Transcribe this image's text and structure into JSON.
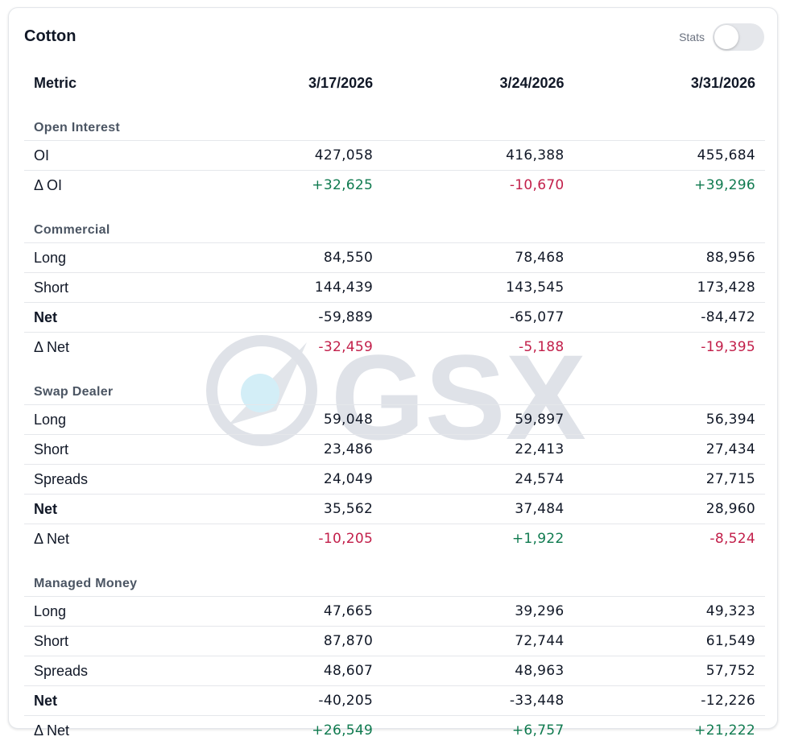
{
  "card": {
    "title": "Cotton",
    "stats_label": "Stats",
    "stats_enabled": false
  },
  "watermark": {
    "text": "GSX"
  },
  "colors": {
    "positive": "#0f7a4f",
    "negative": "#c21f4a",
    "section": "#4b5563"
  },
  "table": {
    "headers": [
      "Metric",
      "3/17/2026",
      "3/24/2026",
      "3/31/2026"
    ],
    "sections": [
      {
        "title": "Open Interest",
        "rows": [
          {
            "label": "OI",
            "values": [
              "427,058",
              "416,388",
              "455,684"
            ],
            "bold": false,
            "delta": false
          },
          {
            "label": "Δ OI",
            "values": [
              "+32,625",
              "-10,670",
              "+39,296"
            ],
            "bold": false,
            "delta": true
          }
        ]
      },
      {
        "title": "Commercial",
        "rows": [
          {
            "label": "Long",
            "values": [
              "84,550",
              "78,468",
              "88,956"
            ],
            "bold": false,
            "delta": false
          },
          {
            "label": "Short",
            "values": [
              "144,439",
              "143,545",
              "173,428"
            ],
            "bold": false,
            "delta": false
          },
          {
            "label": "Net",
            "values": [
              "-59,889",
              "-65,077",
              "-84,472"
            ],
            "bold": true,
            "delta": false
          },
          {
            "label": "Δ Net",
            "values": [
              "-32,459",
              "-5,188",
              "-19,395"
            ],
            "bold": false,
            "delta": true
          }
        ]
      },
      {
        "title": "Swap Dealer",
        "rows": [
          {
            "label": "Long",
            "values": [
              "59,048",
              "59,897",
              "56,394"
            ],
            "bold": false,
            "delta": false
          },
          {
            "label": "Short",
            "values": [
              "23,486",
              "22,413",
              "27,434"
            ],
            "bold": false,
            "delta": false
          },
          {
            "label": "Spreads",
            "values": [
              "24,049",
              "24,574",
              "27,715"
            ],
            "bold": false,
            "delta": false
          },
          {
            "label": "Net",
            "values": [
              "35,562",
              "37,484",
              "28,960"
            ],
            "bold": true,
            "delta": false
          },
          {
            "label": "Δ Net",
            "values": [
              "-10,205",
              "+1,922",
              "-8,524"
            ],
            "bold": false,
            "delta": true
          }
        ]
      },
      {
        "title": "Managed Money",
        "rows": [
          {
            "label": "Long",
            "values": [
              "47,665",
              "39,296",
              "49,323"
            ],
            "bold": false,
            "delta": false
          },
          {
            "label": "Short",
            "values": [
              "87,870",
              "72,744",
              "61,549"
            ],
            "bold": false,
            "delta": false
          },
          {
            "label": "Spreads",
            "values": [
              "48,607",
              "48,963",
              "57,752"
            ],
            "bold": false,
            "delta": false
          },
          {
            "label": "Net",
            "values": [
              "-40,205",
              "-33,448",
              "-12,226"
            ],
            "bold": true,
            "delta": false
          },
          {
            "label": "Δ Net",
            "values": [
              "+26,549",
              "+6,757",
              "+21,222"
            ],
            "bold": false,
            "delta": true
          }
        ]
      }
    ]
  }
}
